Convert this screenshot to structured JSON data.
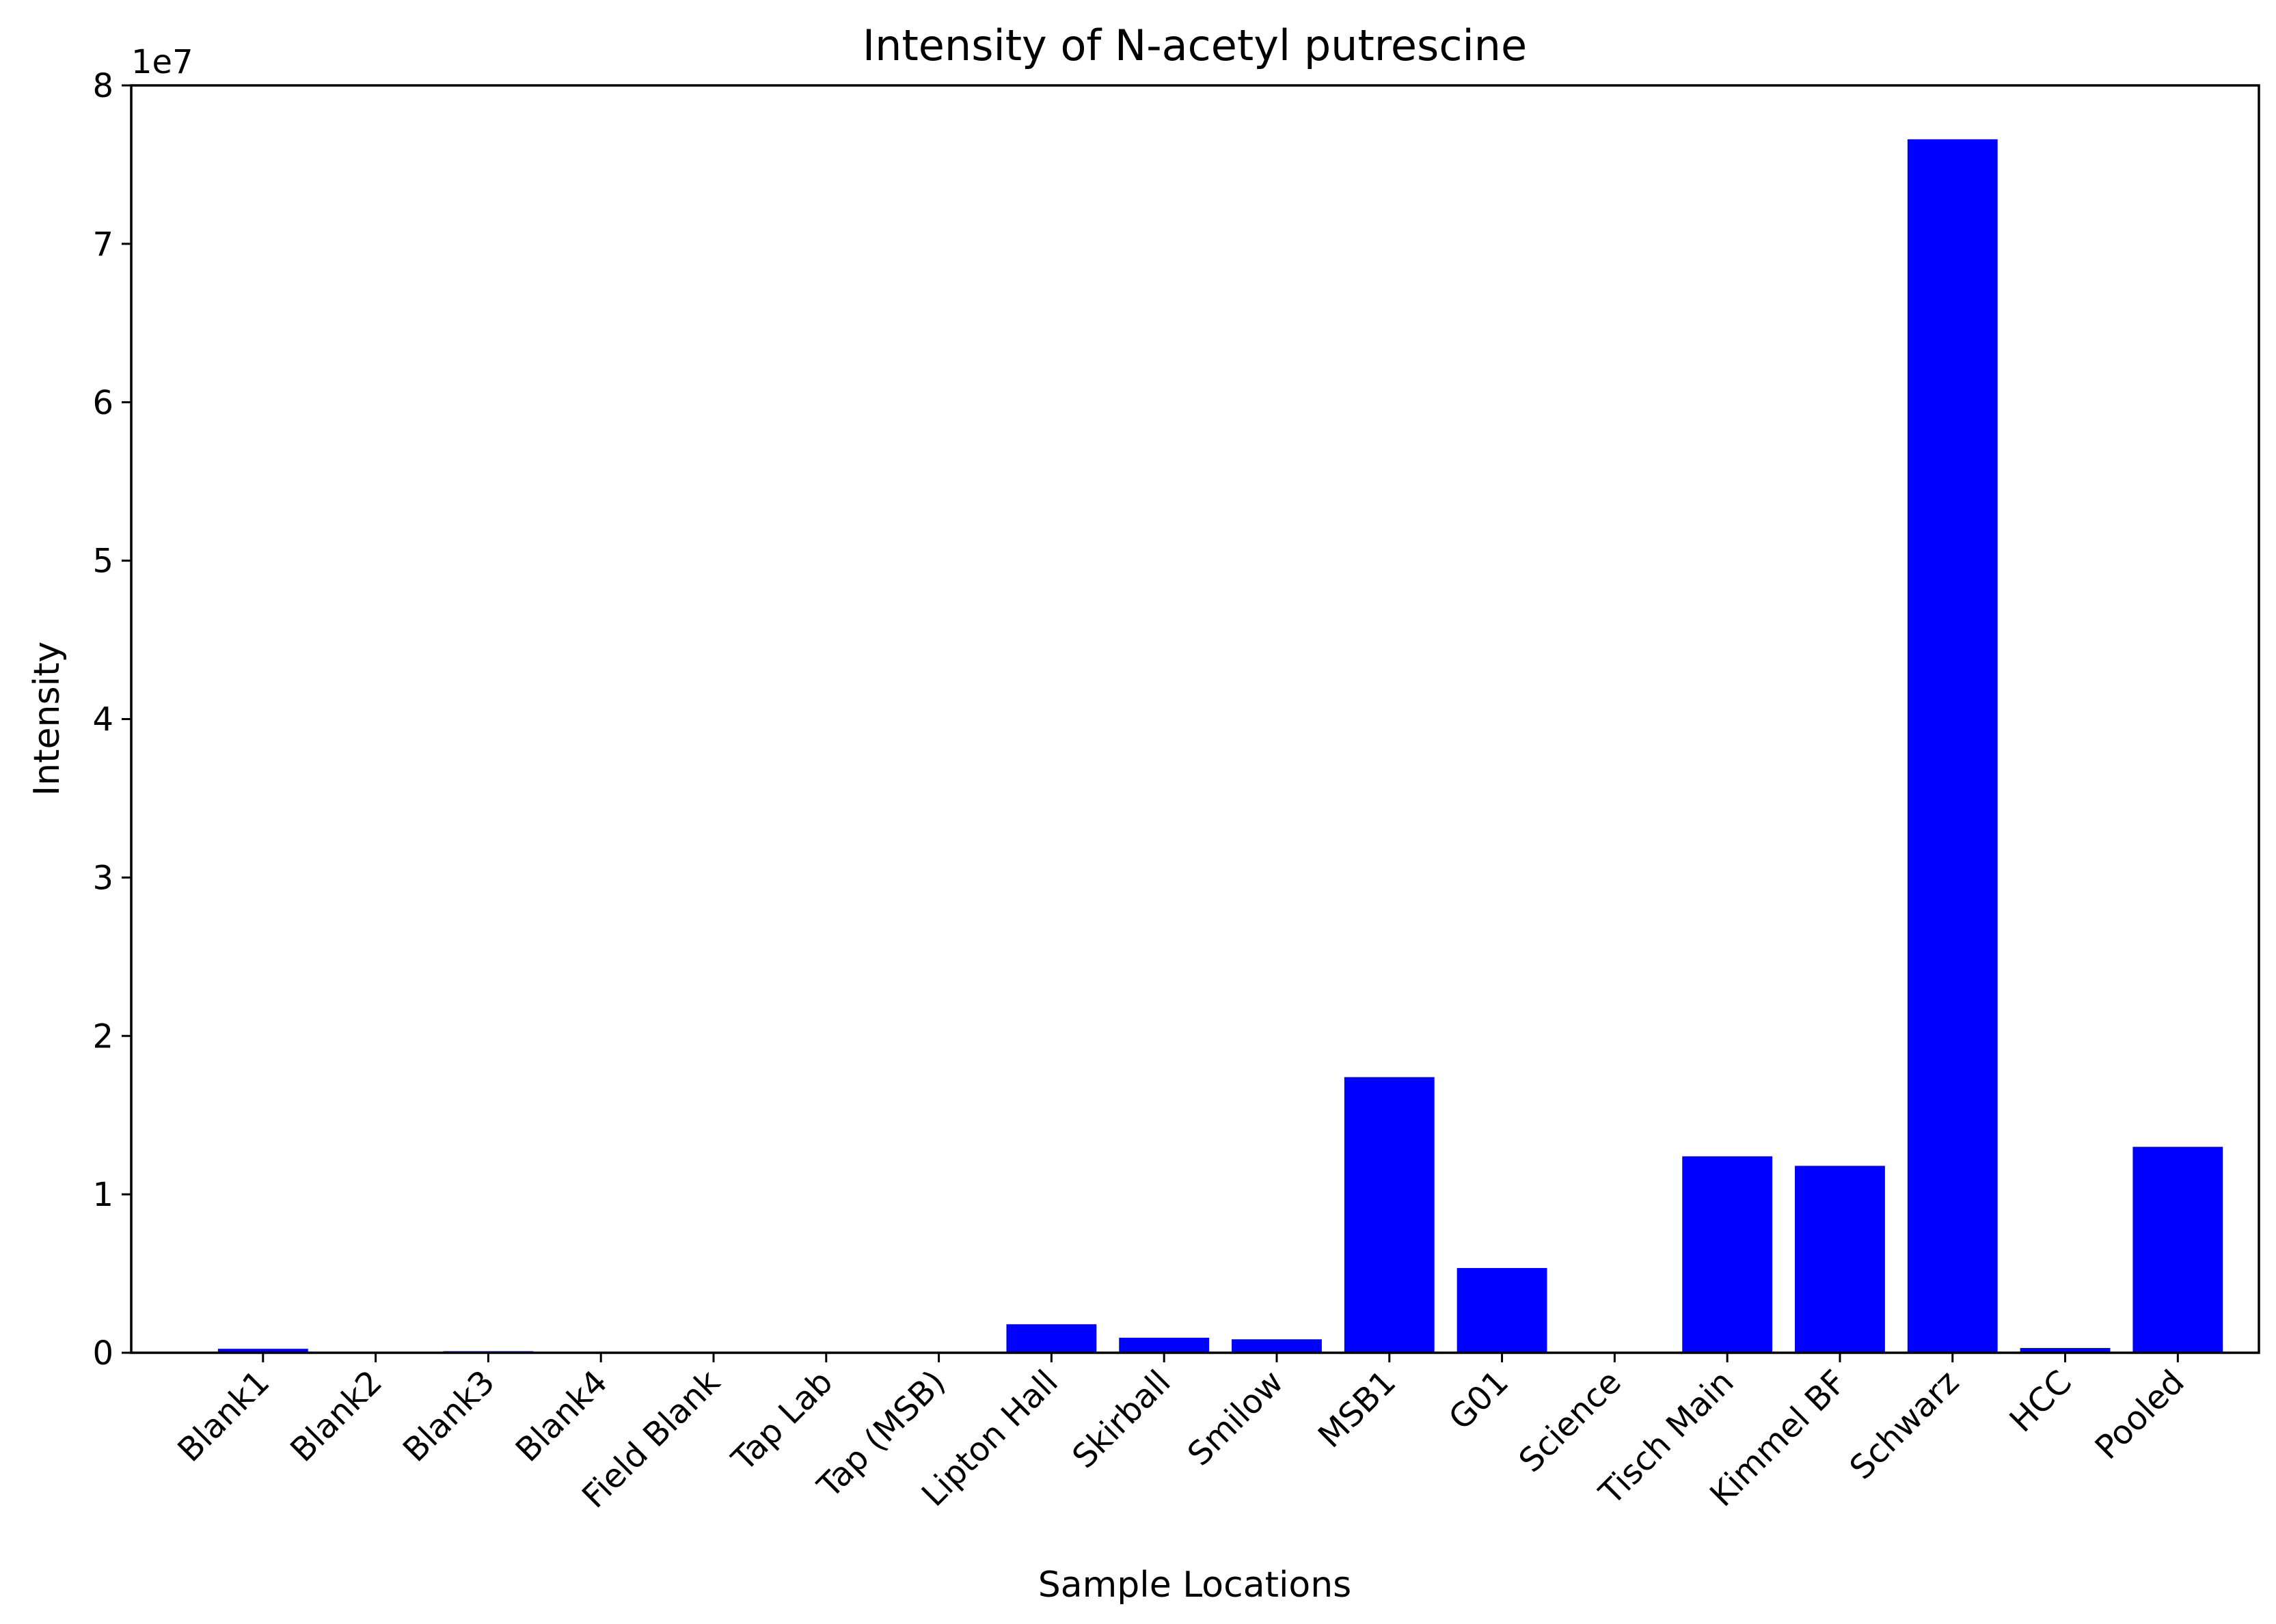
{
  "chart_data": {
    "type": "bar",
    "title": "Intensity of N-acetyl putrescine",
    "xlabel": "Sample Locations",
    "ylabel": "Intensity",
    "y_offset_label": "1e7",
    "y_scale": 10000000,
    "ylim": [
      0,
      80000000
    ],
    "y_ticks": [
      0,
      10000000,
      20000000,
      30000000,
      40000000,
      50000000,
      60000000,
      70000000,
      80000000
    ],
    "y_tick_labels": [
      "0",
      "1",
      "2",
      "3",
      "4",
      "5",
      "6",
      "7",
      "8"
    ],
    "grid": false,
    "bar_color": "#0000ff",
    "categories": [
      "Blank1",
      "Blank2",
      "Blank3",
      "Blank4",
      "Field Blank",
      "Tap Lab",
      "Tap (MSB)",
      "Lipton Hall",
      "Skirball",
      "Smilow",
      "MSB1",
      "G01",
      "Science",
      "Tisch Main",
      "Kimmel BF",
      "Schwarz",
      "HCC",
      "Pooled"
    ],
    "values": [
      250000,
      0,
      100000,
      0,
      0,
      0,
      0,
      1800000,
      950000,
      850000,
      17400000,
      5350000,
      0,
      12400000,
      11800000,
      76600000,
      300000,
      13000000
    ]
  }
}
